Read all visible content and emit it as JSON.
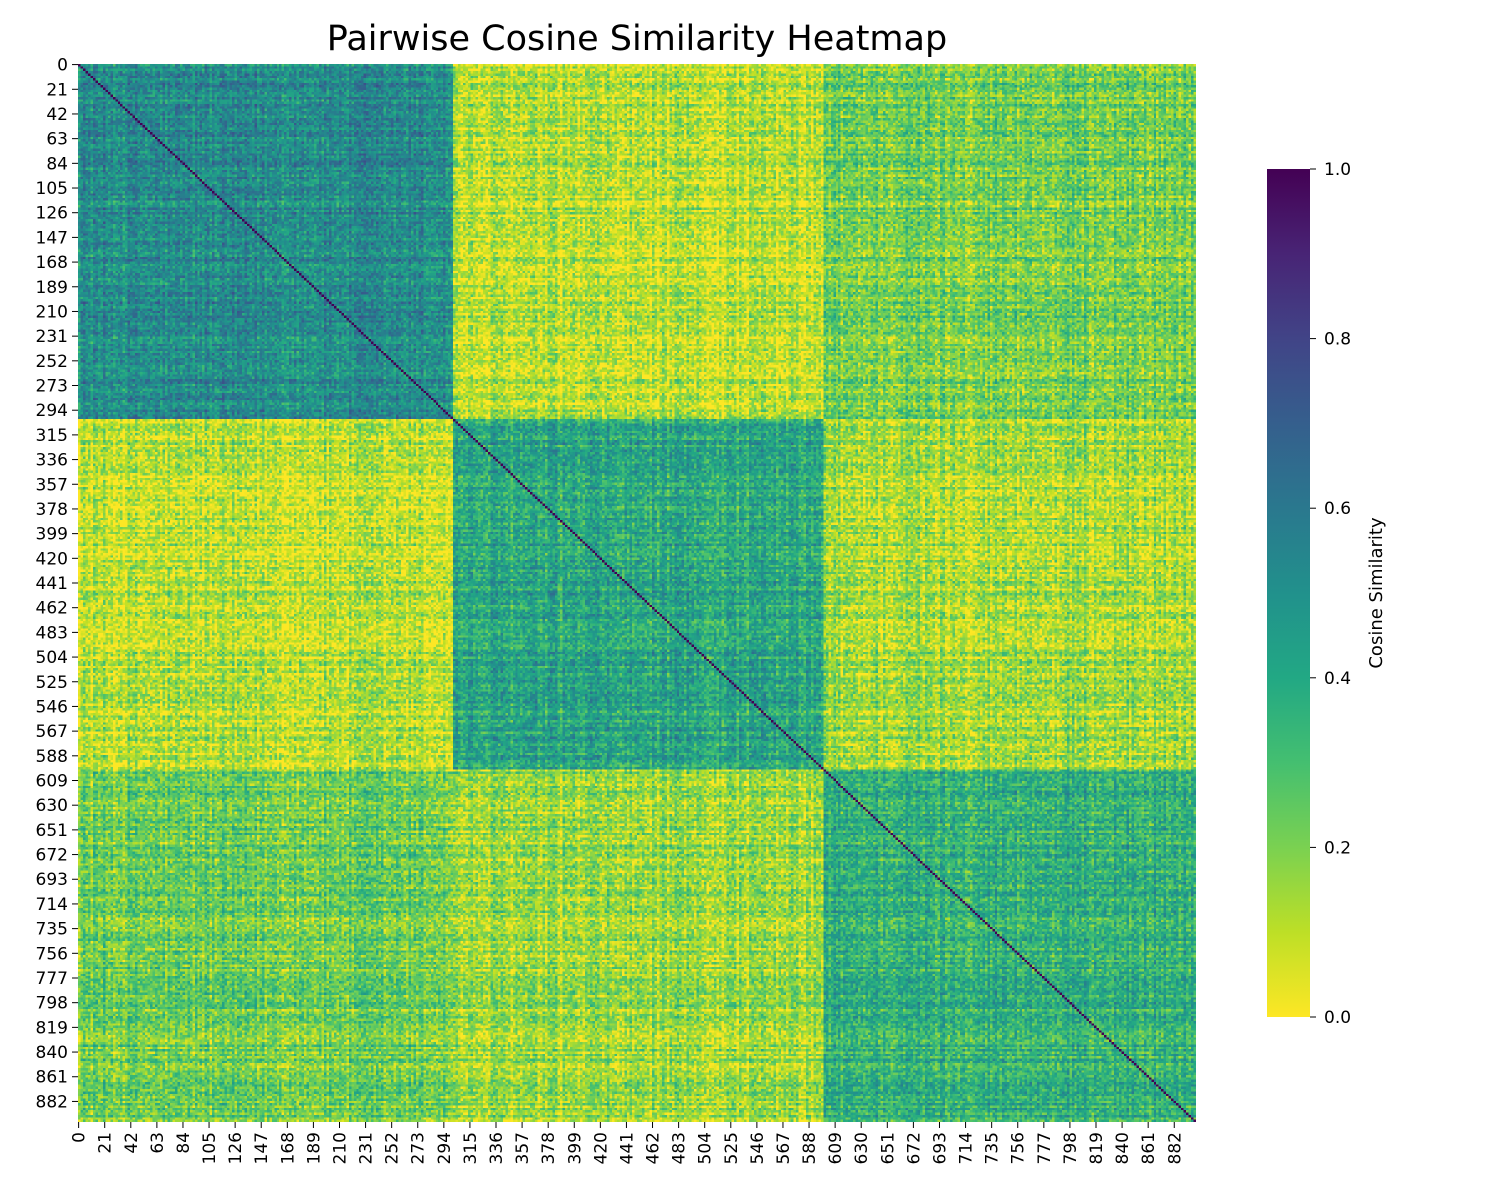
{
  "chart_data": {
    "type": "heatmap",
    "title": "Pairwise Cosine Similarity Heatmap",
    "n": 900,
    "tick_step": 21,
    "x_tick_labels": [
      "0",
      "21",
      "42",
      "63",
      "84",
      "105",
      "126",
      "147",
      "168",
      "189",
      "210",
      "231",
      "252",
      "273",
      "294",
      "315",
      "336",
      "357",
      "378",
      "399",
      "420",
      "441",
      "462",
      "483",
      "504",
      "525",
      "546",
      "567",
      "588",
      "609",
      "630",
      "651",
      "672",
      "693",
      "714",
      "735",
      "756",
      "777",
      "798",
      "819",
      "840",
      "861",
      "882"
    ],
    "y_tick_labels": [
      "0",
      "21",
      "42",
      "63",
      "84",
      "105",
      "126",
      "147",
      "168",
      "189",
      "210",
      "231",
      "252",
      "273",
      "294",
      "315",
      "336",
      "357",
      "378",
      "399",
      "420",
      "441",
      "462",
      "483",
      "504",
      "525",
      "546",
      "567",
      "588",
      "609",
      "630",
      "651",
      "672",
      "693",
      "714",
      "735",
      "756",
      "777",
      "798",
      "819",
      "840",
      "861",
      "882"
    ],
    "colormap": "viridis_r",
    "colorbar": {
      "label": "Cosine Similarity",
      "vmin": 0.0,
      "vmax": 1.0,
      "ticks": [
        0.0,
        0.2,
        0.4,
        0.6,
        0.8,
        1.0
      ],
      "tick_labels": [
        "0.0",
        "0.2",
        "0.4",
        "0.6",
        "0.8",
        "1.0"
      ]
    },
    "clusters": [
      {
        "start": 0,
        "end": 300
      },
      {
        "start": 301,
        "end": 598
      },
      {
        "start": 599,
        "end": 899
      }
    ],
    "mean_similarity_blocks": [
      [
        0.52,
        0.1,
        0.22
      ],
      [
        0.1,
        0.4,
        0.14
      ],
      [
        0.22,
        0.14,
        0.36
      ]
    ],
    "diagonal_value": 1.0
  },
  "colors": {
    "low": "#fde725",
    "high": "#440154"
  }
}
